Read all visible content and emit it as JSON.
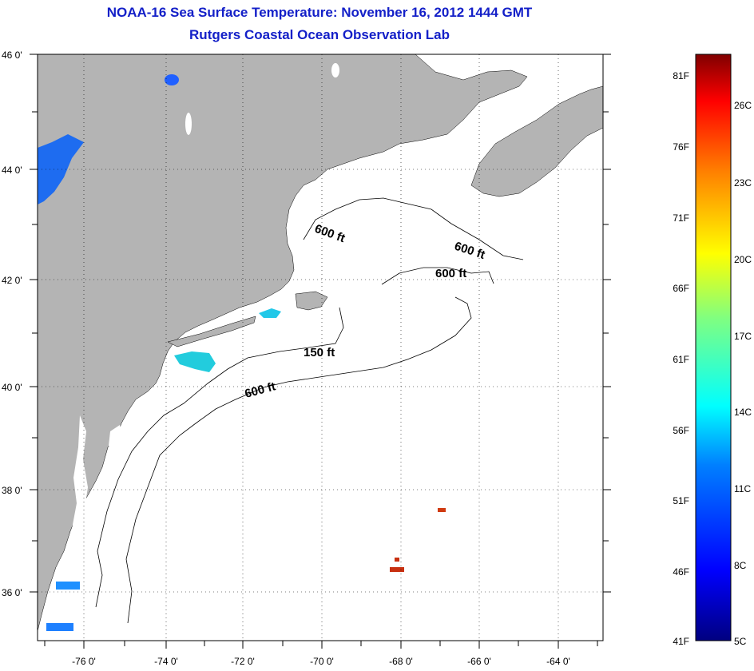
{
  "header": {
    "title": "NOAA-16 Sea Surface Temperature:  November 16, 2012 1444 GMT",
    "subtitle": "Rutgers Coastal Ocean Observation Lab"
  },
  "map": {
    "lon_range": [
      -77,
      -63
    ],
    "lat_range": [
      35,
      46
    ],
    "lat_labels": [
      "46 0'",
      "44 0'",
      "42 0'",
      "40 0'",
      "38 0'",
      "36 0'"
    ],
    "lon_labels": [
      "-76 0'",
      "-74 0'",
      "-72 0'",
      "-70 0'",
      "-68 0'",
      "-66 0'",
      "-64 0'"
    ],
    "land_color": "#b4b4b4",
    "ocean_color": "#ffffff",
    "grid": "dotted",
    "contour_labels": [
      "600 ft",
      "600 ft",
      "600 ft",
      "150 ft",
      "600 ft"
    ]
  },
  "colorbar": {
    "f_labels": [
      "81F",
      "76F",
      "71F",
      "66F",
      "61F",
      "56F",
      "51F",
      "46F",
      "41F"
    ],
    "c_labels": [
      "26C",
      "23C",
      "20C",
      "17C",
      "14C",
      "11C",
      "8C",
      "5C"
    ],
    "colors": [
      "#000080",
      "#0000ff",
      "#0080ff",
      "#00ffff",
      "#80ff80",
      "#ffff00",
      "#ff8000",
      "#ff0000",
      "#800000"
    ]
  }
}
